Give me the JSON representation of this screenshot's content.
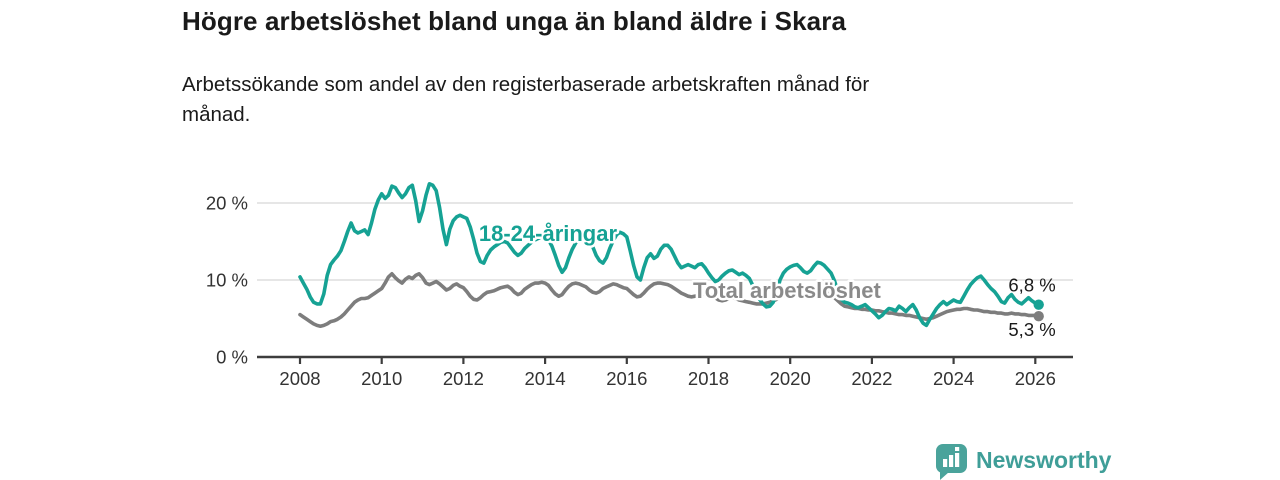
{
  "header": {
    "title": "Högre arbetslöshet bland unga än bland äldre i Skara",
    "subtitle_line1": "Arbetssökande som andel av den registerbaserade arbetskraften månad för",
    "subtitle_line2": "månad."
  },
  "footer": {
    "brand": "Newsworthy"
  },
  "colors": {
    "young_line": "#16a294",
    "total_line": "#7d7d7d",
    "total_label": "#8a8a8a",
    "grid": "#d8d8d8",
    "axis": "#3d3d3d",
    "tick_text": "#333333",
    "value_text": "#1a1a1a",
    "brand": "#3f9e98",
    "brand_icon": "#4aa39b"
  },
  "chart_data": {
    "type": "line",
    "title": "Högre arbetslöshet bland unga än bland äldre i Skara",
    "subtitle": "Arbetssökande som andel av den registerbaserade arbetskraften månad för månad.",
    "unit": "%",
    "grid": "horizontal",
    "legend_position": "inline-labels",
    "xlim": [
      2007.0,
      2027.0
    ],
    "ylim": [
      0,
      24
    ],
    "x_ticks": [
      2008,
      2010,
      2012,
      2014,
      2016,
      2018,
      2020,
      2022,
      2024,
      2026
    ],
    "y_ticks": [
      {
        "value": 0,
        "label": "0 %"
      },
      {
        "value": 10,
        "label": "10 %"
      },
      {
        "value": 20,
        "label": "20 %"
      }
    ],
    "series": [
      {
        "name": "18-24-åringar",
        "color": "#16a294",
        "label_color": "#16a294",
        "start": "2008-01",
        "interval": "monthly",
        "end_label": "6,8 %",
        "end_value": 6.8,
        "label_anchor": {
          "year": 2014.07,
          "value": 16.0
        },
        "values": [
          10.4,
          9.6,
          8.8,
          7.8,
          7.1,
          6.9,
          6.9,
          8.2,
          10.6,
          12.0,
          12.6,
          13.1,
          13.8,
          15.0,
          16.3,
          17.4,
          16.4,
          16.1,
          16.3,
          16.5,
          15.9,
          17.4,
          19.2,
          20.4,
          21.2,
          20.6,
          21.0,
          22.2,
          22.0,
          21.3,
          20.7,
          21.2,
          22.0,
          22.3,
          20.3,
          17.6,
          19.0,
          21.0,
          22.5,
          22.3,
          21.6,
          19.4,
          16.6,
          14.6,
          16.6,
          17.7,
          18.2,
          18.4,
          18.2,
          18.0,
          16.9,
          15.3,
          13.5,
          12.4,
          12.2,
          13.2,
          13.9,
          14.3,
          14.6,
          14.9,
          15.0,
          14.8,
          14.2,
          13.6,
          13.2,
          13.5,
          14.1,
          14.5,
          14.9,
          15.2,
          15.4,
          15.6,
          15.6,
          15.2,
          14.4,
          13.2,
          11.9,
          11.0,
          11.6,
          12.9,
          14.0,
          14.8,
          15.3,
          15.9,
          16.1,
          15.4,
          14.3,
          13.2,
          12.5,
          12.2,
          12.9,
          14.1,
          15.1,
          15.9,
          16.2,
          16.0,
          15.6,
          13.8,
          11.9,
          10.4,
          10.0,
          11.6,
          12.9,
          13.4,
          12.8,
          13.1,
          14.0,
          14.5,
          14.5,
          14.0,
          13.1,
          12.2,
          11.6,
          11.8,
          12.0,
          11.8,
          11.6,
          12.0,
          12.1,
          11.6,
          10.9,
          10.3,
          9.8,
          10.0,
          10.5,
          10.9,
          11.2,
          11.3,
          11.0,
          10.7,
          10.9,
          10.6,
          10.2,
          9.3,
          8.4,
          7.5,
          6.9,
          6.5,
          6.6,
          7.1,
          8.3,
          10.0,
          10.9,
          11.4,
          11.7,
          11.9,
          12.0,
          11.6,
          11.1,
          10.9,
          11.2,
          11.8,
          12.3,
          12.2,
          11.9,
          11.4,
          10.9,
          9.9,
          8.5,
          7.5,
          7.1,
          7.0,
          6.8,
          6.5,
          6.4,
          6.6,
          6.8,
          6.4,
          6.0,
          5.6,
          5.1,
          5.4,
          5.9,
          6.3,
          6.2,
          6.0,
          6.6,
          6.3,
          5.9,
          6.4,
          6.8,
          6.1,
          5.1,
          4.4,
          4.1,
          4.9,
          5.6,
          6.3,
          6.8,
          7.2,
          6.8,
          7.1,
          7.4,
          7.2,
          7.1,
          7.9,
          8.7,
          9.4,
          9.9,
          10.3,
          10.5,
          10.0,
          9.4,
          8.9,
          8.5,
          7.9,
          7.2,
          7.0,
          7.7,
          8.1,
          7.5,
          7.1,
          6.9,
          7.3,
          7.7,
          7.3,
          7.0,
          6.8
        ]
      },
      {
        "name": "Total arbetslöshet",
        "color": "#7d7d7d",
        "label_color": "#8a8a8a",
        "start": "2008-01",
        "interval": "monthly",
        "end_label": "5,3 %",
        "end_value": 5.3,
        "label_anchor": {
          "year": 2019.92,
          "value": 8.57
        },
        "values": [
          5.5,
          5.2,
          4.9,
          4.6,
          4.3,
          4.1,
          4.0,
          4.1,
          4.3,
          4.6,
          4.7,
          4.9,
          5.2,
          5.6,
          6.1,
          6.6,
          7.1,
          7.4,
          7.6,
          7.6,
          7.7,
          8.0,
          8.3,
          8.6,
          8.9,
          9.6,
          10.4,
          10.8,
          10.3,
          9.9,
          9.6,
          10.1,
          10.4,
          10.2,
          10.6,
          10.8,
          10.3,
          9.6,
          9.4,
          9.6,
          9.8,
          9.5,
          9.1,
          8.7,
          8.9,
          9.3,
          9.5,
          9.2,
          9.0,
          8.5,
          7.9,
          7.5,
          7.4,
          7.7,
          8.1,
          8.4,
          8.5,
          8.6,
          8.8,
          9.0,
          9.1,
          9.2,
          8.9,
          8.4,
          8.1,
          8.3,
          8.8,
          9.1,
          9.4,
          9.6,
          9.6,
          9.7,
          9.6,
          9.3,
          8.7,
          8.2,
          7.9,
          8.1,
          8.7,
          9.2,
          9.5,
          9.6,
          9.5,
          9.3,
          9.1,
          8.7,
          8.4,
          8.3,
          8.5,
          8.9,
          9.1,
          9.3,
          9.5,
          9.4,
          9.2,
          9.0,
          8.9,
          8.5,
          8.1,
          7.8,
          7.9,
          8.3,
          8.8,
          9.2,
          9.5,
          9.6,
          9.6,
          9.5,
          9.4,
          9.2,
          8.9,
          8.6,
          8.3,
          8.1,
          7.9,
          7.8,
          7.9,
          8.0,
          8.1,
          8.2,
          8.2,
          8.0,
          7.7,
          7.4,
          7.3,
          7.4,
          7.6,
          7.7,
          7.6,
          7.4,
          7.3,
          7.2,
          7.1,
          7.0,
          6.9,
          6.9,
          6.9,
          7.0,
          7.1,
          7.3,
          7.5,
          7.7,
          7.9,
          8.1,
          8.3,
          8.5,
          8.7,
          8.9,
          9.0,
          9.0,
          8.9,
          8.9,
          8.8,
          8.7,
          8.5,
          8.3,
          8.0,
          7.7,
          7.3,
          6.9,
          6.6,
          6.5,
          6.4,
          6.3,
          6.3,
          6.2,
          6.2,
          6.1,
          6.1,
          6.0,
          6.0,
          5.9,
          5.8,
          5.7,
          5.7,
          5.6,
          5.5,
          5.5,
          5.4,
          5.4,
          5.3,
          5.2,
          5.1,
          5.0,
          4.9,
          5.0,
          5.1,
          5.3,
          5.5,
          5.7,
          5.9,
          6.0,
          6.1,
          6.2,
          6.2,
          6.3,
          6.3,
          6.2,
          6.1,
          6.1,
          6.0,
          5.9,
          5.9,
          5.8,
          5.8,
          5.7,
          5.7,
          5.6,
          5.6,
          5.7,
          5.6,
          5.6,
          5.5,
          5.5,
          5.4,
          5.4,
          5.4,
          5.3
        ]
      }
    ]
  }
}
